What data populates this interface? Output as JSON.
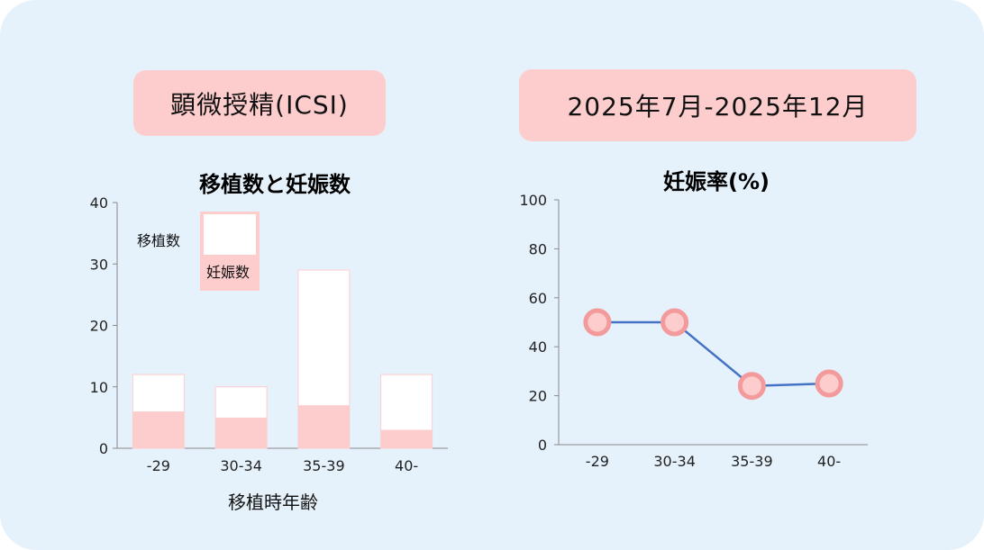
{
  "section_labels": {
    "procedure": "顕微授精(ICSI)",
    "period": "2025年7月-2025年12月"
  },
  "colors": {
    "background": "#e6f2fb",
    "pill": "#fdcdcd",
    "transfers_bar": "#ffffff",
    "pregnancies_bar": "#fdcdcd",
    "line": "#4472c4",
    "marker_fill": "#fdcdcd",
    "marker_stroke": "#f39a9c"
  },
  "chart_data": [
    {
      "type": "bar",
      "title": "移植数と妊娠数",
      "xlabel": "移植時年齢",
      "ylabel": "",
      "categories": [
        "-29",
        "30-34",
        "35-39",
        "40-"
      ],
      "series": [
        {
          "name": "移植数",
          "values": [
            12,
            10,
            29,
            12
          ]
        },
        {
          "name": "妊娠数",
          "values": [
            6,
            5,
            7,
            3
          ]
        }
      ],
      "ylim": [
        0,
        40
      ],
      "yticks": [
        "0",
        "10",
        "20",
        "30",
        "40"
      ],
      "legend": "top-left",
      "grid": false
    },
    {
      "type": "line",
      "title": "妊娠率(%)",
      "xlabel": "",
      "ylabel": "",
      "categories": [
        "-29",
        "30-34",
        "35-39",
        "40-"
      ],
      "values": [
        50,
        50,
        24,
        25
      ],
      "ylim": [
        0,
        100
      ],
      "yticks": [
        "0",
        "20",
        "40",
        "60",
        "80",
        "100"
      ],
      "grid": false
    }
  ]
}
